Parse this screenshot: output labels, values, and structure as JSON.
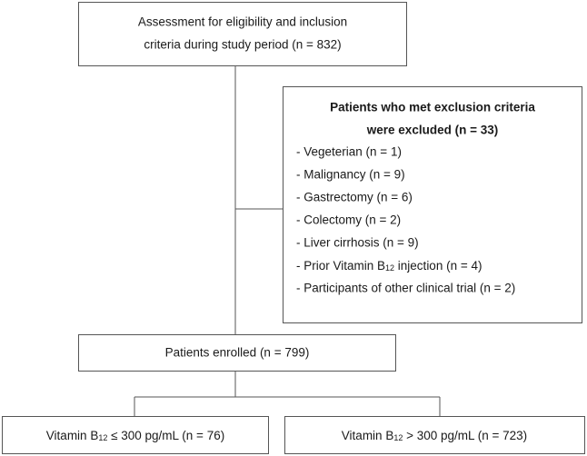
{
  "assessment": {
    "lines": [
      "Assessment for eligibility and inclusion",
      "criteria during study period (n = 832)"
    ]
  },
  "exclusion": {
    "title": [
      "Patients who met exclusion criteria",
      "were excluded (n = 33)"
    ],
    "items": [
      "- Vegeterian (n = 1)",
      "- Malignancy (n = 9)",
      "- Gastrectomy (n = 6)",
      "- Colectomy (n = 2)",
      "- Liver cirrhosis (n = 9)",
      [
        "- Prior Vitamin B",
        "12",
        " injection (n = 4)"
      ],
      "- Participants of other clinical trial (n = 2)"
    ]
  },
  "enrolled": {
    "label": "Patients enrolled (n = 799)"
  },
  "groups": [
    [
      "Vitamin B",
      "12",
      " ≤ 300 pg/mL (n = 76)"
    ],
    [
      "Vitamin B",
      "12",
      " > 300 pg/mL (n = 723)"
    ]
  ]
}
